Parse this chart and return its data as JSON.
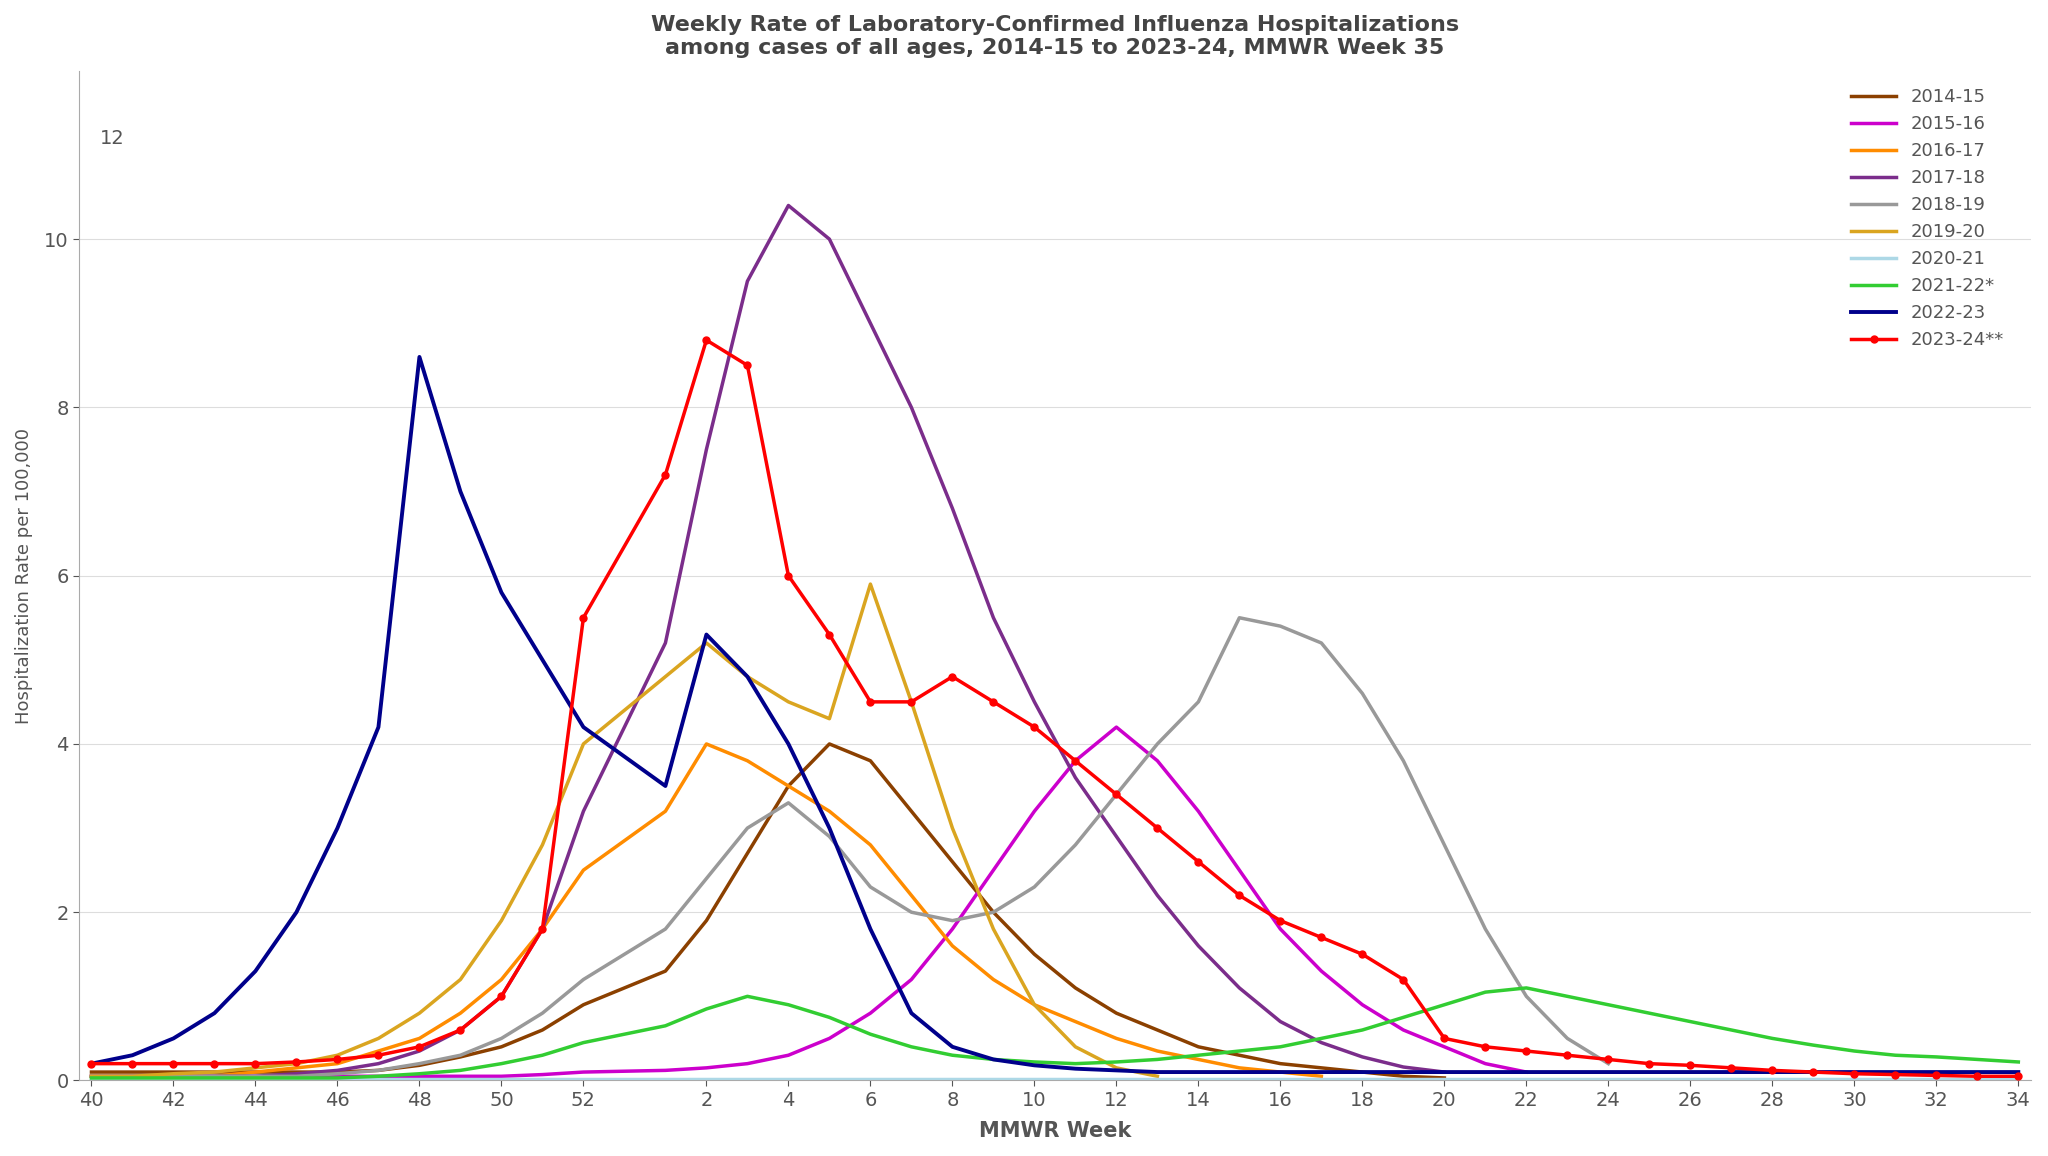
{
  "title_line1": "Weekly Rate of Laboratory-Confirmed Influenza Hospitalizations",
  "title_line2": "among cases of all ages, 2014-15 to 2023-24, MMWR Week 35",
  "ylabel": "Hospitalization Rate per 100,000",
  "xlabel": "MMWR Week",
  "ylim": [
    0,
    12
  ],
  "yticks": [
    0,
    2,
    4,
    6,
    8,
    10,
    12
  ],
  "xtick_labels": [
    "40",
    "42",
    "44",
    "46",
    "48",
    "50",
    "52",
    "2",
    "4",
    "6",
    "8",
    "10",
    "12",
    "14",
    "16",
    "18",
    "20",
    "22",
    "24",
    "26",
    "28",
    "30",
    "32",
    "34"
  ],
  "seasons": {
    "2014-15": {
      "color": "#8B4000",
      "linewidth": 2.5,
      "marker": null,
      "weeks": [
        40,
        41,
        42,
        43,
        44,
        45,
        46,
        47,
        48,
        49,
        50,
        51,
        52,
        1,
        2,
        3,
        4,
        5,
        6,
        7,
        8,
        9,
        10,
        11,
        12,
        13,
        14,
        15,
        16,
        17,
        18,
        19,
        20
      ],
      "values": [
        0.1,
        0.1,
        0.1,
        0.1,
        0.1,
        0.1,
        0.1,
        0.12,
        0.18,
        0.28,
        0.4,
        0.6,
        0.9,
        1.3,
        1.9,
        2.7,
        3.5,
        4.0,
        3.8,
        3.2,
        2.6,
        2.0,
        1.5,
        1.1,
        0.8,
        0.6,
        0.4,
        0.3,
        0.2,
        0.15,
        0.1,
        0.05,
        0.03
      ]
    },
    "2015-16": {
      "color": "#CC00CC",
      "linewidth": 2.5,
      "marker": null,
      "weeks": [
        40,
        41,
        42,
        43,
        44,
        45,
        46,
        47,
        48,
        49,
        50,
        51,
        52,
        1,
        2,
        3,
        4,
        5,
        6,
        7,
        8,
        9,
        10,
        11,
        12,
        13,
        14,
        15,
        16,
        17,
        18,
        19,
        20,
        21,
        22
      ],
      "values": [
        0.05,
        0.05,
        0.05,
        0.05,
        0.05,
        0.05,
        0.05,
        0.05,
        0.05,
        0.05,
        0.05,
        0.07,
        0.1,
        0.12,
        0.15,
        0.2,
        0.3,
        0.5,
        0.8,
        1.2,
        1.8,
        2.5,
        3.2,
        3.8,
        4.2,
        3.8,
        3.2,
        2.5,
        1.8,
        1.3,
        0.9,
        0.6,
        0.4,
        0.2,
        0.1
      ]
    },
    "2016-17": {
      "color": "#FF8C00",
      "linewidth": 2.5,
      "marker": null,
      "weeks": [
        40,
        41,
        42,
        43,
        44,
        45,
        46,
        47,
        48,
        49,
        50,
        51,
        52,
        1,
        2,
        3,
        4,
        5,
        6,
        7,
        8,
        9,
        10,
        11,
        12,
        13,
        14,
        15,
        16,
        17
      ],
      "values": [
        0.05,
        0.05,
        0.05,
        0.05,
        0.1,
        0.15,
        0.2,
        0.35,
        0.5,
        0.8,
        1.2,
        1.8,
        2.5,
        3.2,
        4.0,
        3.8,
        3.5,
        3.2,
        2.8,
        2.2,
        1.6,
        1.2,
        0.9,
        0.7,
        0.5,
        0.35,
        0.25,
        0.15,
        0.1,
        0.05
      ]
    },
    "2017-18": {
      "color": "#7B2D8B",
      "linewidth": 2.5,
      "marker": null,
      "weeks": [
        40,
        41,
        42,
        43,
        44,
        45,
        46,
        47,
        48,
        49,
        50,
        51,
        52,
        1,
        2,
        3,
        4,
        5,
        6,
        7,
        8,
        9,
        10,
        11,
        12,
        13,
        14,
        15,
        16,
        17,
        18,
        19,
        20
      ],
      "values": [
        0.05,
        0.05,
        0.05,
        0.05,
        0.05,
        0.08,
        0.12,
        0.2,
        0.35,
        0.6,
        1.0,
        1.8,
        3.2,
        5.2,
        7.5,
        9.5,
        10.4,
        10.0,
        9.0,
        8.0,
        6.8,
        5.5,
        4.5,
        3.6,
        2.9,
        2.2,
        1.6,
        1.1,
        0.7,
        0.45,
        0.28,
        0.16,
        0.1
      ]
    },
    "2018-19": {
      "color": "#999999",
      "linewidth": 2.5,
      "marker": null,
      "weeks": [
        40,
        41,
        42,
        43,
        44,
        45,
        46,
        47,
        48,
        49,
        50,
        51,
        52,
        1,
        2,
        3,
        4,
        5,
        6,
        7,
        8,
        9,
        10,
        11,
        12,
        13,
        14,
        15,
        16,
        17,
        18,
        19,
        20,
        21,
        22,
        23,
        24
      ],
      "values": [
        0.05,
        0.05,
        0.05,
        0.05,
        0.05,
        0.05,
        0.08,
        0.12,
        0.2,
        0.3,
        0.5,
        0.8,
        1.2,
        1.8,
        2.4,
        3.0,
        3.3,
        2.9,
        2.3,
        2.0,
        1.9,
        2.0,
        2.3,
        2.8,
        3.4,
        4.0,
        4.5,
        5.5,
        5.4,
        5.2,
        4.6,
        3.8,
        2.8,
        1.8,
        1.0,
        0.5,
        0.2
      ]
    },
    "2019-20": {
      "color": "#DAA520",
      "linewidth": 2.5,
      "marker": null,
      "weeks": [
        40,
        41,
        42,
        43,
        44,
        45,
        46,
        47,
        48,
        49,
        50,
        51,
        52,
        1,
        2,
        3,
        4,
        5,
        6,
        7,
        8,
        9,
        10,
        11,
        12,
        13
      ],
      "values": [
        0.05,
        0.05,
        0.08,
        0.1,
        0.15,
        0.2,
        0.3,
        0.5,
        0.8,
        1.2,
        1.9,
        2.8,
        4.0,
        4.8,
        5.2,
        4.8,
        4.5,
        4.3,
        5.9,
        4.5,
        3.0,
        1.8,
        0.9,
        0.4,
        0.15,
        0.05
      ]
    },
    "2020-21": {
      "color": "#ADD8E6",
      "linewidth": 2.5,
      "marker": null,
      "weeks": [
        40,
        41,
        42,
        43,
        44,
        45,
        46,
        47,
        48,
        49,
        50,
        51,
        52,
        1,
        2,
        3,
        4,
        5,
        6,
        7,
        8,
        9,
        10,
        11,
        12,
        13,
        14,
        15,
        16,
        17,
        18,
        19,
        20,
        21,
        22,
        23,
        24,
        25,
        26,
        27,
        28,
        29,
        30,
        31,
        32,
        33,
        34
      ],
      "values": [
        0.02,
        0.02,
        0.02,
        0.02,
        0.02,
        0.02,
        0.02,
        0.02,
        0.02,
        0.02,
        0.02,
        0.02,
        0.02,
        0.02,
        0.02,
        0.02,
        0.02,
        0.02,
        0.02,
        0.02,
        0.02,
        0.02,
        0.02,
        0.02,
        0.02,
        0.02,
        0.02,
        0.02,
        0.02,
        0.02,
        0.02,
        0.02,
        0.02,
        0.02,
        0.02,
        0.02,
        0.02,
        0.02,
        0.02,
        0.02,
        0.02,
        0.02,
        0.02,
        0.02,
        0.02,
        0.02,
        0.02
      ]
    },
    "2021-22*": {
      "color": "#32CD32",
      "linewidth": 2.5,
      "marker": null,
      "weeks": [
        40,
        41,
        42,
        43,
        44,
        45,
        46,
        47,
        48,
        49,
        50,
        51,
        52,
        1,
        2,
        3,
        4,
        5,
        6,
        7,
        8,
        9,
        10,
        11,
        12,
        13,
        14,
        15,
        16,
        17,
        18,
        19,
        20,
        21,
        22,
        23,
        24,
        25,
        26,
        27,
        28,
        29,
        30,
        31,
        32,
        33,
        34
      ],
      "values": [
        0.03,
        0.03,
        0.03,
        0.03,
        0.03,
        0.03,
        0.03,
        0.05,
        0.08,
        0.12,
        0.2,
        0.3,
        0.45,
        0.65,
        0.85,
        1.0,
        0.9,
        0.75,
        0.55,
        0.4,
        0.3,
        0.25,
        0.22,
        0.2,
        0.22,
        0.25,
        0.3,
        0.35,
        0.4,
        0.5,
        0.6,
        0.75,
        0.9,
        1.05,
        1.1,
        1.0,
        0.9,
        0.8,
        0.7,
        0.6,
        0.5,
        0.42,
        0.35,
        0.3,
        0.28,
        0.25,
        0.22
      ]
    },
    "2022-23": {
      "color": "#00008B",
      "linewidth": 2.8,
      "marker": null,
      "weeks": [
        40,
        41,
        42,
        43,
        44,
        45,
        46,
        47,
        48,
        49,
        50,
        51,
        52,
        1,
        2,
        3,
        4,
        5,
        6,
        7,
        8,
        9,
        10,
        11,
        12,
        13,
        14,
        15,
        16,
        17,
        18,
        19,
        20,
        21,
        22,
        23,
        24,
        25,
        26,
        27,
        28,
        29,
        30,
        31,
        32,
        33,
        34
      ],
      "values": [
        0.2,
        0.3,
        0.5,
        0.8,
        1.3,
        2.0,
        3.0,
        4.2,
        8.6,
        7.0,
        5.8,
        5.0,
        4.2,
        3.5,
        5.3,
        4.8,
        4.0,
        3.0,
        1.8,
        0.8,
        0.4,
        0.25,
        0.18,
        0.14,
        0.12,
        0.1,
        0.1,
        0.1,
        0.1,
        0.1,
        0.1,
        0.1,
        0.1,
        0.1,
        0.1,
        0.1,
        0.1,
        0.1,
        0.1,
        0.1,
        0.1,
        0.1,
        0.1,
        0.1,
        0.1,
        0.1,
        0.1
      ]
    },
    "2023-24**": {
      "color": "#FF0000",
      "linewidth": 2.5,
      "marker": "o",
      "markersize": 5,
      "weeks": [
        40,
        41,
        42,
        43,
        44,
        45,
        46,
        47,
        48,
        49,
        50,
        51,
        52,
        1,
        2,
        3,
        4,
        5,
        6,
        7,
        8,
        9,
        10,
        11,
        12,
        13,
        14,
        15,
        16,
        17,
        18,
        19,
        20,
        21,
        22,
        23,
        24,
        25,
        26,
        27,
        28,
        29,
        30,
        31,
        32,
        33,
        34
      ],
      "values": [
        0.2,
        0.2,
        0.2,
        0.2,
        0.2,
        0.22,
        0.25,
        0.3,
        0.4,
        0.6,
        1.0,
        1.8,
        5.5,
        7.2,
        8.8,
        8.5,
        6.0,
        5.3,
        4.5,
        4.5,
        4.8,
        4.5,
        4.2,
        3.8,
        3.4,
        3.0,
        2.6,
        2.2,
        1.9,
        1.7,
        1.5,
        1.2,
        0.5,
        0.4,
        0.35,
        0.3,
        0.25,
        0.2,
        0.18,
        0.15,
        0.12,
        0.1,
        0.08,
        0.07,
        0.06,
        0.05,
        0.05
      ]
    }
  }
}
